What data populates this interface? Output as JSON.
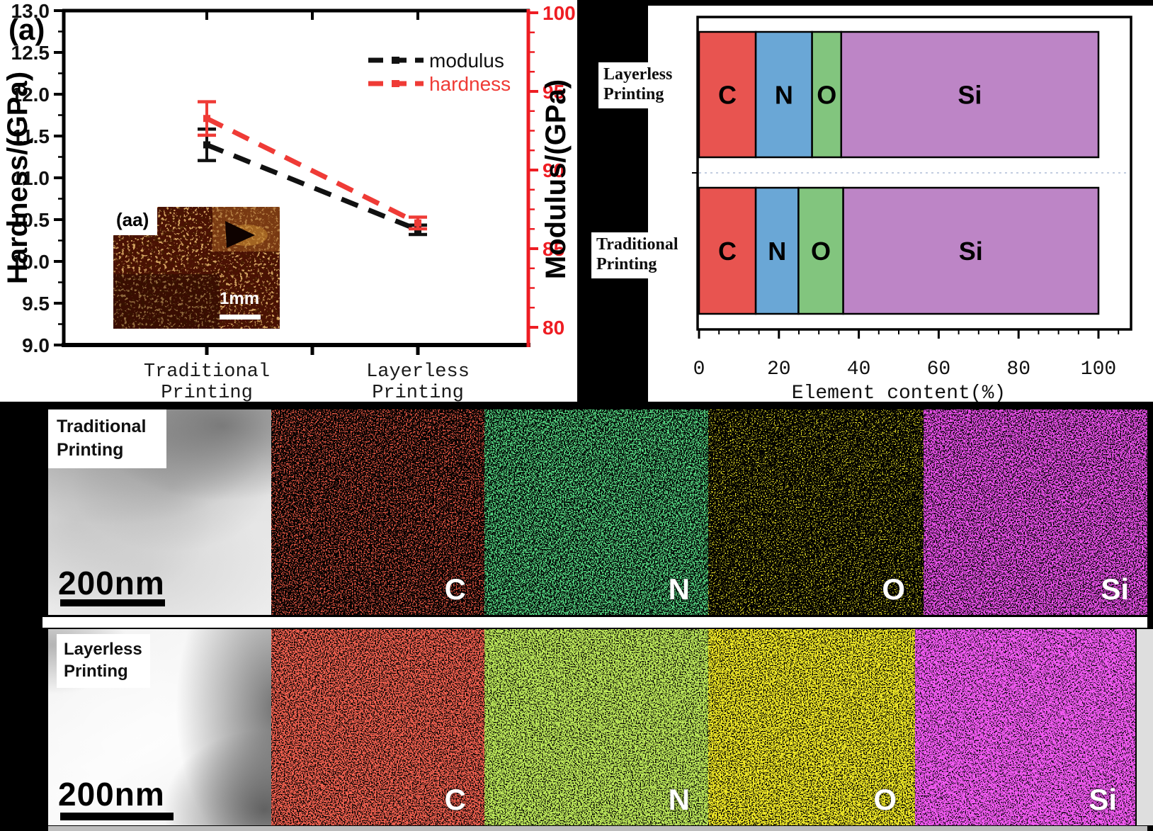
{
  "chart_data": [
    {
      "id": "nanoindentation",
      "type": "line",
      "panel_label": "(a)",
      "categories": [
        "Traditional Printing",
        "Layerless Printing"
      ],
      "left_axis": {
        "label": "Hardness/(GPa)",
        "min": 9.0,
        "max": 13.0,
        "major_step": 0.5,
        "minor_step": 0.25,
        "color": "#111111"
      },
      "right_axis": {
        "label": "Modulus/(GPa)",
        "min": 80,
        "max": 100,
        "major_step": 5,
        "minor_step": 1.25,
        "color": "#ee1d23"
      },
      "series": [
        {
          "name": "modulus",
          "color": "#111111",
          "axis": "right",
          "values": [
            91.6,
            86.2
          ],
          "errors": [
            1.0,
            0.3
          ]
        },
        {
          "name": "hardness",
          "color": "#ef3b36",
          "axis": "left",
          "values": [
            11.71,
            10.46
          ],
          "errors": [
            0.2,
            0.07
          ]
        }
      ],
      "legend": [
        "modulus",
        "hardness"
      ],
      "grid": false,
      "legend_position": "upper-right-inside",
      "inset": {
        "label": "(aa)",
        "scale_bar_text": "1mm"
      }
    },
    {
      "id": "element-content",
      "type": "bar",
      "orientation": "horizontal",
      "xlabel": "Element content(%)",
      "x_ticks": [
        0,
        20,
        40,
        60,
        80,
        100
      ],
      "x_minor_step": 5,
      "xlim": [
        0,
        107
      ],
      "segments": [
        "C",
        "N",
        "O",
        "Si"
      ],
      "colors": {
        "C": "#e85450",
        "N": "#6aa7d6",
        "O": "#82c57e",
        "Si": "#bd85c6"
      },
      "rows": [
        {
          "category": "Layerless Printing",
          "label_lines": [
            "Layerless",
            "Printing"
          ],
          "values": {
            "C": 14.2,
            "N": 14.1,
            "O": 7.3,
            "Si": 64.4
          }
        },
        {
          "category": "Traditional Printing",
          "label_lines": [
            "Traditional",
            "Printing"
          ],
          "values": {
            "C": 14.2,
            "N": 10.7,
            "O": 11.2,
            "Si": 63.9
          }
        }
      ]
    }
  ],
  "eds": {
    "rows": [
      {
        "label_lines": [
          "Traditional",
          "Printing"
        ],
        "scale_bar_text": "200nm",
        "elements": [
          "C",
          "N",
          "O",
          "Si"
        ]
      },
      {
        "label_lines": [
          "Layerless",
          "Printing"
        ],
        "scale_bar_text": "200nm",
        "elements": [
          "C",
          "N",
          "O",
          "Si"
        ]
      }
    ],
    "map_colors": {
      "C": "#cc1616",
      "N": "#18a818",
      "O": "#b8b000",
      "Si": "#cc10cc"
    }
  }
}
